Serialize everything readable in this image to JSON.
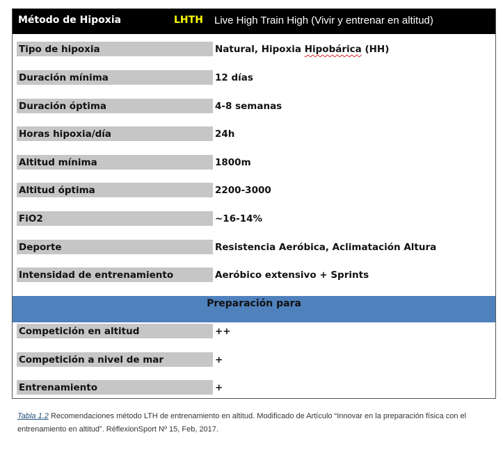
{
  "header": {
    "title": "Método de Hipoxia",
    "code": "LHTH",
    "description": "Live High Train High (Vivir y entrenar en altitud)"
  },
  "rows": [
    {
      "label": "Tipo de hipoxia",
      "value": "Natural, Hipoxia Hipobárica (HH)"
    },
    {
      "label": "Duración mínima",
      "value": "12 días"
    },
    {
      "label": "Duración óptima",
      "value": "4-8 semanas"
    },
    {
      "label": "Horas hipoxia/día",
      "value": "24h"
    },
    {
      "label": "Altitud mínima",
      "value": "1800m"
    },
    {
      "label": "Altitud óptima",
      "value": "2200-3000"
    },
    {
      "label": "FiO2",
      "value": "~16-14%"
    },
    {
      "label": "Deporte",
      "value": "Resistencia Aeróbica, Aclimatación Altura"
    },
    {
      "label": "Intensidad de entrenamiento",
      "value": "Aeróbico extensivo + Sprints"
    }
  ],
  "section_title": "Preparación para",
  "prep_rows": [
    {
      "label": "Competición en altitud",
      "value": "++"
    },
    {
      "label": "Competición a nivel de mar",
      "value": "+"
    },
    {
      "label": "Entrenamiento",
      "value": "+"
    }
  ],
  "caption": {
    "ref": "Tabla 1.2",
    "text": " Recomendaciones método LTH de entrenamiento en altitud. Modificado de Artículo “Innovar en la preparación física con el entrenamiento en altitud”. RéflexionSport Nº 15, Feb, 2017."
  },
  "colors": {
    "header_bg": "#000000",
    "code_color": "#ffff00",
    "label_bg": "#c6c6c6",
    "section_bg": "#4f81bd"
  }
}
